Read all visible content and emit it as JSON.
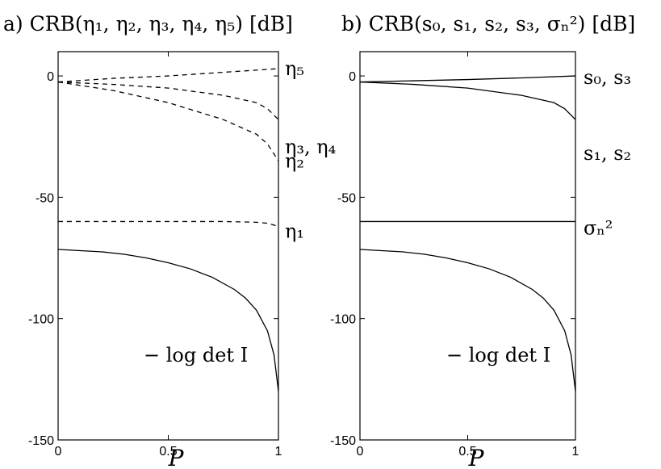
{
  "chart_data": [
    {
      "type": "line",
      "title": "a) CRB(η₁, η₂, η₃, η₄, η₅) [dB]",
      "xlabel": "P",
      "ylabel": "",
      "xlim": [
        0,
        1
      ],
      "ylim": [
        -150,
        10
      ],
      "xticks": [
        "0",
        "0.5",
        "1"
      ],
      "yticks": [
        "0",
        "-50",
        "-100",
        "-150"
      ],
      "xtick_values": [
        0,
        0.5,
        1
      ],
      "ytick_values": [
        0,
        -50,
        -100,
        -150
      ],
      "grid": false,
      "series": [
        {
          "name": "η₅",
          "style": "dashed",
          "x": [
            0,
            0.25,
            0.5,
            0.75,
            1.0
          ],
          "y": [
            -2.5,
            -1.0,
            0.0,
            1.5,
            3.0
          ]
        },
        {
          "name": "η₃, η₄",
          "style": "dashed",
          "x": [
            0,
            0.25,
            0.5,
            0.75,
            0.9,
            0.95,
            1.0
          ],
          "y": [
            -2.5,
            -3.5,
            -5.0,
            -8.0,
            -11.0,
            -13.5,
            -18.0
          ]
        },
        {
          "name": "η₂",
          "style": "dashed",
          "x": [
            0,
            0.25,
            0.5,
            0.75,
            0.9,
            0.95,
            1.0
          ],
          "y": [
            -2.5,
            -6.0,
            -11.0,
            -18.0,
            -24.0,
            -28.0,
            -35.0
          ]
        },
        {
          "name": "η₁",
          "style": "dashed",
          "x": [
            0,
            0.25,
            0.5,
            0.75,
            0.9,
            0.95,
            1.0
          ],
          "y": [
            -60.0,
            -60.0,
            -60.0,
            -60.0,
            -60.3,
            -60.7,
            -62.0
          ]
        },
        {
          "name": "−log det I",
          "style": "solid",
          "x": [
            0,
            0.1,
            0.2,
            0.3,
            0.4,
            0.5,
            0.6,
            0.7,
            0.8,
            0.85,
            0.9,
            0.95,
            0.98,
            1.0
          ],
          "y": [
            -71.5,
            -72.0,
            -72.5,
            -73.5,
            -75.0,
            -77.0,
            -79.5,
            -83.0,
            -88.0,
            -91.5,
            -96.5,
            -105.0,
            -115.0,
            -130.0
          ]
        }
      ],
      "annotations": [
        {
          "text": "η₅",
          "series": "η₅"
        },
        {
          "text": "η₃, η₄",
          "series": "η₃, η₄"
        },
        {
          "text": "η₂",
          "series": "η₂"
        },
        {
          "text": "η₁",
          "series": "η₁"
        },
        {
          "text": "− log det I",
          "series": "−log det I"
        }
      ]
    },
    {
      "type": "line",
      "title": "b) CRB(s₀, s₁, s₂, s₃, σₙ²) [dB]",
      "xlabel": "P",
      "ylabel": "",
      "xlim": [
        0,
        1
      ],
      "ylim": [
        -150,
        10
      ],
      "xticks": [
        "0",
        "0.5",
        "1"
      ],
      "yticks": [
        "0",
        "-50",
        "-100",
        "-150"
      ],
      "xtick_values": [
        0,
        0.5,
        1
      ],
      "ytick_values": [
        0,
        -50,
        -100,
        -150
      ],
      "grid": false,
      "series": [
        {
          "name": "s₀, s₃",
          "style": "solid",
          "x": [
            0,
            0.25,
            0.5,
            0.75,
            1.0
          ],
          "y": [
            -2.5,
            -2.0,
            -1.5,
            -0.8,
            0.0
          ]
        },
        {
          "name": "s₁, s₂",
          "style": "solid",
          "x": [
            0,
            0.25,
            0.5,
            0.75,
            0.9,
            0.95,
            1.0
          ],
          "y": [
            -2.5,
            -3.5,
            -5.0,
            -8.0,
            -11.0,
            -13.5,
            -18.0
          ]
        },
        {
          "name": "σₙ²",
          "style": "solid",
          "x": [
            0,
            0.5,
            1.0
          ],
          "y": [
            -60.0,
            -60.0,
            -60.0
          ]
        },
        {
          "name": "−log det I",
          "style": "solid",
          "x": [
            0,
            0.1,
            0.2,
            0.3,
            0.4,
            0.5,
            0.6,
            0.7,
            0.8,
            0.85,
            0.9,
            0.95,
            0.98,
            1.0
          ],
          "y": [
            -71.5,
            -72.0,
            -72.5,
            -73.5,
            -75.0,
            -77.0,
            -79.5,
            -83.0,
            -88.0,
            -91.5,
            -96.5,
            -105.0,
            -115.0,
            -130.0
          ]
        }
      ],
      "annotations": [
        {
          "text": "s₀, s₃",
          "series": "s₀, s₃"
        },
        {
          "text": "s₁, s₂",
          "series": "s₁, s₂"
        },
        {
          "text": "σₙ²",
          "series": "σₙ²"
        },
        {
          "text": "− log det I",
          "series": "−log det I"
        }
      ]
    }
  ]
}
